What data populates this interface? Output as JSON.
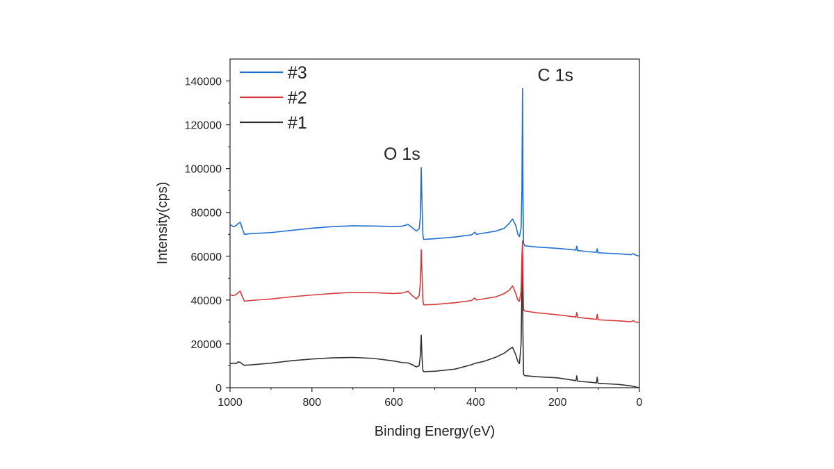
{
  "chart_data": {
    "type": "line",
    "xlabel": "Binding Energy(eV)",
    "ylabel": "Intensity(cps)",
    "xlim": [
      1000,
      0
    ],
    "ylim": [
      0,
      150000
    ],
    "x_reversed": true,
    "xticks": [
      "1000",
      "800",
      "600",
      "400",
      "200",
      "0"
    ],
    "yticks": [
      "0",
      "20000",
      "40000",
      "60000",
      "80000",
      "100000",
      "120000",
      "140000"
    ],
    "grid": false,
    "legend_position": "top-left",
    "annotations": [
      {
        "text": "O 1s",
        "x": 580,
        "y": 104000
      },
      {
        "text": "C 1s",
        "x": 205,
        "y": 140000
      }
    ],
    "series": [
      {
        "name": "#3",
        "color": "#1f6fd1",
        "points": [
          [
            1000,
            74500
          ],
          [
            992,
            73500
          ],
          [
            985,
            74000
          ],
          [
            980,
            75000
          ],
          [
            975,
            75500
          ],
          [
            970,
            72500
          ],
          [
            965,
            70000
          ],
          [
            950,
            70300
          ],
          [
            900,
            70800
          ],
          [
            850,
            71800
          ],
          [
            800,
            72800
          ],
          [
            750,
            73500
          ],
          [
            700,
            73900
          ],
          [
            650,
            73800
          ],
          [
            600,
            73600
          ],
          [
            580,
            73700
          ],
          [
            565,
            74500
          ],
          [
            555,
            73000
          ],
          [
            545,
            71500
          ],
          [
            538,
            72500
          ],
          [
            535,
            78000
          ],
          [
            533,
            100500
          ],
          [
            531,
            84000
          ],
          [
            529,
            70000
          ],
          [
            527,
            67700
          ],
          [
            500,
            68000
          ],
          [
            450,
            68800
          ],
          [
            410,
            69800
          ],
          [
            402,
            71000
          ],
          [
            398,
            70000
          ],
          [
            350,
            71500
          ],
          [
            330,
            72800
          ],
          [
            318,
            75000
          ],
          [
            310,
            77000
          ],
          [
            302,
            74000
          ],
          [
            297,
            70000
          ],
          [
            293,
            69000
          ],
          [
            289,
            73000
          ],
          [
            287,
            90000
          ],
          [
            285.5,
            136500
          ],
          [
            284.5,
            90000
          ],
          [
            283,
            66000
          ],
          [
            280,
            64800
          ],
          [
            250,
            64200
          ],
          [
            200,
            63600
          ],
          [
            165,
            63000
          ],
          [
            155,
            62800
          ],
          [
            153,
            64600
          ],
          [
            151,
            62600
          ],
          [
            120,
            62000
          ],
          [
            105,
            61800
          ],
          [
            103,
            63400
          ],
          [
            101,
            61600
          ],
          [
            50,
            61100
          ],
          [
            20,
            60700
          ],
          [
            15,
            61200
          ],
          [
            10,
            60600
          ],
          [
            0,
            60000
          ]
        ]
      },
      {
        "name": "#2",
        "color": "#d63a3a",
        "points": [
          [
            1000,
            42500
          ],
          [
            992,
            42000
          ],
          [
            985,
            42500
          ],
          [
            980,
            43500
          ],
          [
            975,
            44000
          ],
          [
            970,
            41500
          ],
          [
            965,
            39500
          ],
          [
            950,
            39800
          ],
          [
            900,
            40500
          ],
          [
            850,
            41500
          ],
          [
            800,
            42300
          ],
          [
            750,
            43000
          ],
          [
            700,
            43500
          ],
          [
            650,
            43400
          ],
          [
            600,
            43000
          ],
          [
            580,
            43200
          ],
          [
            565,
            44000
          ],
          [
            555,
            42000
          ],
          [
            545,
            40500
          ],
          [
            538,
            42000
          ],
          [
            535,
            48000
          ],
          [
            533,
            63000
          ],
          [
            531,
            52000
          ],
          [
            529,
            40000
          ],
          [
            527,
            37800
          ],
          [
            500,
            38000
          ],
          [
            450,
            38800
          ],
          [
            410,
            39800
          ],
          [
            402,
            41000
          ],
          [
            398,
            40000
          ],
          [
            350,
            41500
          ],
          [
            330,
            43000
          ],
          [
            318,
            44500
          ],
          [
            310,
            46500
          ],
          [
            302,
            43000
          ],
          [
            297,
            40000
          ],
          [
            293,
            39500
          ],
          [
            289,
            44000
          ],
          [
            287,
            60000
          ],
          [
            285.5,
            67000
          ],
          [
            284.5,
            50000
          ],
          [
            283,
            35800
          ],
          [
            280,
            35000
          ],
          [
            250,
            34200
          ],
          [
            200,
            33300
          ],
          [
            165,
            32500
          ],
          [
            155,
            32300
          ],
          [
            153,
            34300
          ],
          [
            151,
            32100
          ],
          [
            120,
            31500
          ],
          [
            105,
            31200
          ],
          [
            103,
            33500
          ],
          [
            101,
            31000
          ],
          [
            50,
            30500
          ],
          [
            20,
            30100
          ],
          [
            15,
            30600
          ],
          [
            10,
            30000
          ],
          [
            0,
            29800
          ]
        ]
      },
      {
        "name": "#1",
        "color": "#333333",
        "points": [
          [
            1000,
            11000
          ],
          [
            992,
            11200
          ],
          [
            985,
            11000
          ],
          [
            980,
            11800
          ],
          [
            975,
            11600
          ],
          [
            970,
            10800
          ],
          [
            965,
            10200
          ],
          [
            950,
            10400
          ],
          [
            900,
            11200
          ],
          [
            850,
            12300
          ],
          [
            800,
            13100
          ],
          [
            750,
            13600
          ],
          [
            700,
            13800
          ],
          [
            650,
            13400
          ],
          [
            600,
            12200
          ],
          [
            580,
            11500
          ],
          [
            565,
            11300
          ],
          [
            555,
            10500
          ],
          [
            545,
            9500
          ],
          [
            538,
            10000
          ],
          [
            535,
            15000
          ],
          [
            533,
            24000
          ],
          [
            531,
            14000
          ],
          [
            529,
            8000
          ],
          [
            527,
            7300
          ],
          [
            500,
            7500
          ],
          [
            450,
            8500
          ],
          [
            410,
            10500
          ],
          [
            400,
            11200
          ],
          [
            380,
            12000
          ],
          [
            350,
            14000
          ],
          [
            330,
            15800
          ],
          [
            318,
            17500
          ],
          [
            310,
            18500
          ],
          [
            302,
            15000
          ],
          [
            297,
            12000
          ],
          [
            293,
            11000
          ],
          [
            289,
            20000
          ],
          [
            287,
            45000
          ],
          [
            285.5,
            56000
          ],
          [
            284.5,
            25000
          ],
          [
            283,
            6000
          ],
          [
            280,
            5500
          ],
          [
            250,
            5000
          ],
          [
            200,
            4500
          ],
          [
            165,
            3500
          ],
          [
            155,
            3200
          ],
          [
            153,
            5400
          ],
          [
            151,
            3000
          ],
          [
            120,
            2500
          ],
          [
            105,
            2200
          ],
          [
            103,
            4800
          ],
          [
            101,
            2000
          ],
          [
            50,
            1500
          ],
          [
            20,
            800
          ],
          [
            10,
            400
          ],
          [
            0,
            0
          ]
        ]
      }
    ]
  }
}
